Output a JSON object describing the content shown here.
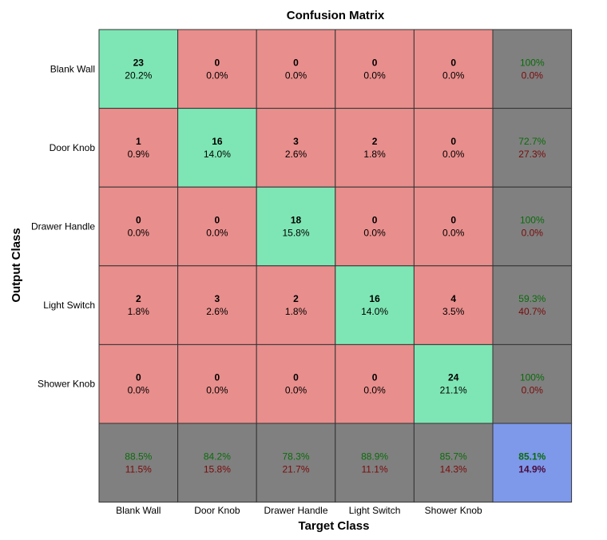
{
  "chart_data": {
    "type": "heatmap",
    "title": "Confusion Matrix",
    "xlabel": "Target Class",
    "ylabel": "Output Class",
    "classes": [
      "Blank Wall",
      "Door Knob",
      "Drawer Handle",
      "Light Switch",
      "Shower Knob"
    ],
    "cells": [
      [
        {
          "count": "23",
          "pct": "20.2%"
        },
        {
          "count": "0",
          "pct": "0.0%"
        },
        {
          "count": "0",
          "pct": "0.0%"
        },
        {
          "count": "0",
          "pct": "0.0%"
        },
        {
          "count": "0",
          "pct": "0.0%"
        }
      ],
      [
        {
          "count": "1",
          "pct": "0.9%"
        },
        {
          "count": "16",
          "pct": "14.0%"
        },
        {
          "count": "3",
          "pct": "2.6%"
        },
        {
          "count": "2",
          "pct": "1.8%"
        },
        {
          "count": "0",
          "pct": "0.0%"
        }
      ],
      [
        {
          "count": "0",
          "pct": "0.0%"
        },
        {
          "count": "0",
          "pct": "0.0%"
        },
        {
          "count": "18",
          "pct": "15.8%"
        },
        {
          "count": "0",
          "pct": "0.0%"
        },
        {
          "count": "0",
          "pct": "0.0%"
        }
      ],
      [
        {
          "count": "2",
          "pct": "1.8%"
        },
        {
          "count": "3",
          "pct": "2.6%"
        },
        {
          "count": "2",
          "pct": "1.8%"
        },
        {
          "count": "16",
          "pct": "14.0%"
        },
        {
          "count": "4",
          "pct": "3.5%"
        }
      ],
      [
        {
          "count": "0",
          "pct": "0.0%"
        },
        {
          "count": "0",
          "pct": "0.0%"
        },
        {
          "count": "0",
          "pct": "0.0%"
        },
        {
          "count": "0",
          "pct": "0.0%"
        },
        {
          "count": "24",
          "pct": "21.1%"
        }
      ]
    ],
    "row_summary": [
      {
        "correct": "100%",
        "error": "0.0%"
      },
      {
        "correct": "72.7%",
        "error": "27.3%"
      },
      {
        "correct": "100%",
        "error": "0.0%"
      },
      {
        "correct": "59.3%",
        "error": "40.7%"
      },
      {
        "correct": "100%",
        "error": "0.0%"
      }
    ],
    "col_summary": [
      {
        "correct": "88.5%",
        "error": "11.5%"
      },
      {
        "correct": "84.2%",
        "error": "15.8%"
      },
      {
        "correct": "78.3%",
        "error": "21.7%"
      },
      {
        "correct": "88.9%",
        "error": "11.1%"
      },
      {
        "correct": "85.7%",
        "error": "14.3%"
      }
    ],
    "overall": {
      "correct": "85.1%",
      "error": "14.9%"
    }
  },
  "colors": {
    "diagonal": "#7ee6b4",
    "off_diagonal": "#e88e8c",
    "summary": "#808080",
    "overall": "#7e98ea",
    "grid": "#333333"
  }
}
